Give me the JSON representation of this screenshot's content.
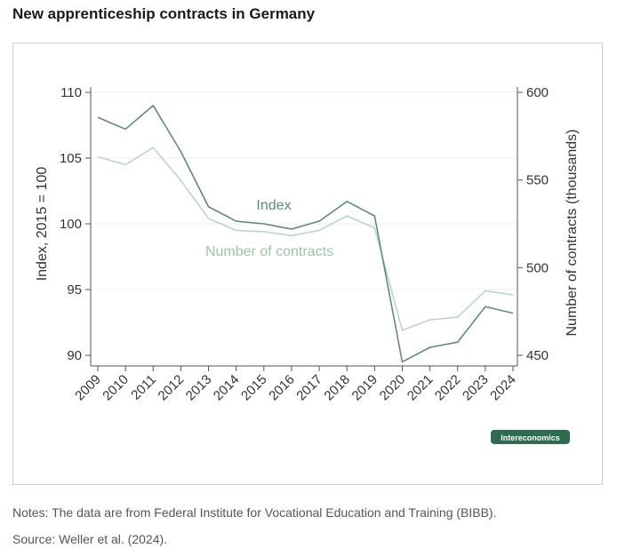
{
  "header": {
    "title": "New apprenticeship contracts in Germany"
  },
  "footer": {
    "notes": "Notes: The data are from Federal Institute for Vocational Education and Training (BIBB).",
    "source": "Source: Weller et al. (2024)."
  },
  "badge": {
    "label": "Intereconomics"
  },
  "colors": {
    "index": "#5e8c74",
    "contracts": "#b9d7c5",
    "badge": "#2e6b50"
  },
  "chart_data": {
    "type": "line",
    "x": [
      "2009",
      "2010",
      "2011",
      "2012",
      "2013",
      "2014",
      "2015",
      "2016",
      "2017",
      "2018",
      "2019",
      "2020",
      "2021",
      "2022",
      "2023",
      "2024"
    ],
    "ylabel": "Index, 2015 = 100",
    "ylabel_right": "Number of contracts (thousands)",
    "ylim": [
      90,
      110
    ],
    "ylim_right": [
      450,
      600
    ],
    "yticks": [
      90,
      95,
      100,
      105,
      110
    ],
    "yticks_right": [
      450,
      500,
      550,
      600
    ],
    "grid": true,
    "series": [
      {
        "name": "Index",
        "axis": "left",
        "values": [
          108.1,
          107.2,
          109.0,
          105.5,
          101.3,
          100.2,
          100.0,
          99.6,
          100.2,
          101.7,
          100.6,
          89.5,
          90.6,
          91.0,
          93.7,
          93.2
        ]
      },
      {
        "name": "Number of contracts",
        "axis": "left",
        "values": [
          105.1,
          104.5,
          105.8,
          103.3,
          100.4,
          99.5,
          99.4,
          99.1,
          99.5,
          100.6,
          99.7,
          91.9,
          92.7,
          92.9,
          94.9,
          94.6
        ]
      }
    ]
  }
}
